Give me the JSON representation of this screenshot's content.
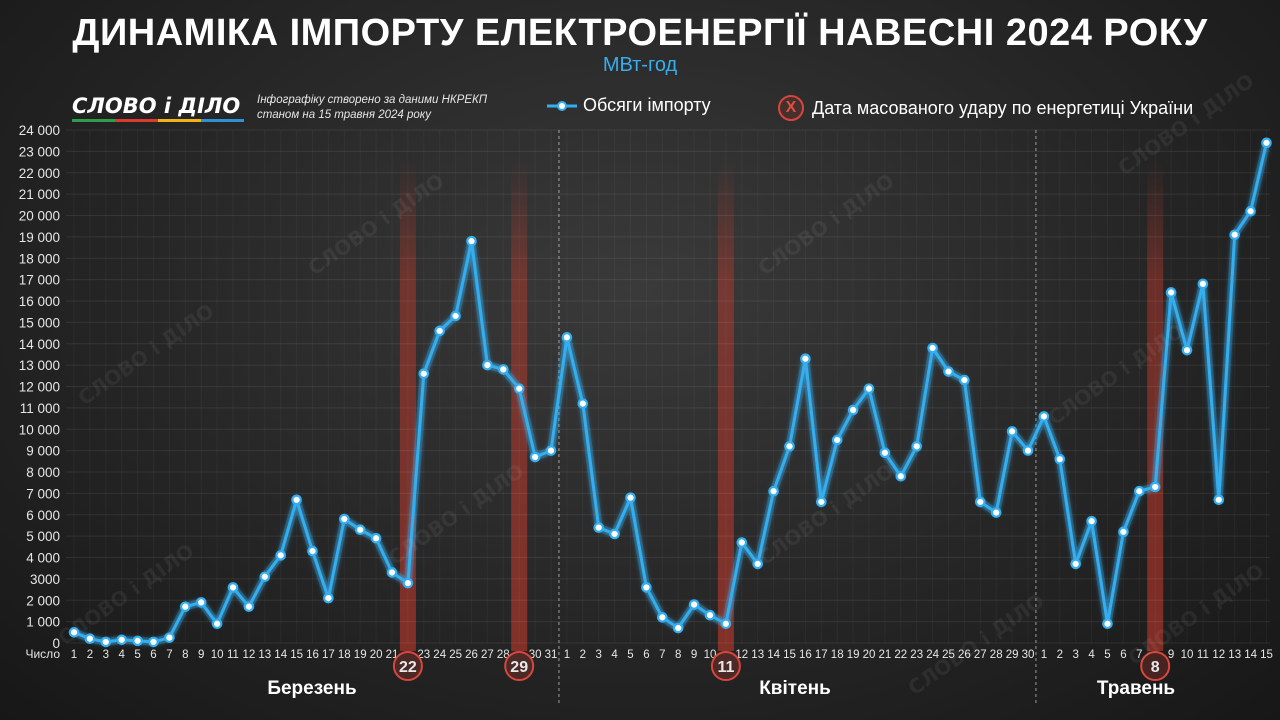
{
  "header": {
    "title": "ДИНАМІКА ІМПОРТУ ЕЛЕКТРОЕНЕРГІЇ НАВЕСНІ 2024 РОКУ",
    "unit": "МВт-год",
    "logo_text": "СЛОВО і ДІЛО",
    "source_line1": "Інфографіку створено за даними НКРЕКП",
    "source_line2": "станом на 15 травня 2024 року",
    "legend_series": "Обсяги імпорту",
    "legend_strike_symbol": "X",
    "legend_strike": "Дата масованого удару по енергетиці України",
    "watermark": "СЛОВО і ДІЛО"
  },
  "colors": {
    "line": "#35aef0",
    "point_fill": "#ffffff",
    "strike": "#c0392b",
    "axis_text": "#e6e6e6",
    "logo_stripes": [
      "#2e9e4a",
      "#d93b30",
      "#f2b318",
      "#2f8fd8"
    ]
  },
  "chart_data": {
    "type": "line",
    "ylim": [
      0,
      24000
    ],
    "yticks": [
      0,
      1000,
      2000,
      3000,
      4000,
      5000,
      6000,
      7000,
      8000,
      9000,
      10000,
      11000,
      12000,
      13000,
      14000,
      15000,
      16000,
      17000,
      18000,
      19000,
      20000,
      21000,
      22000,
      23000,
      24000
    ],
    "ytick_labels": [
      "0",
      "1 000",
      "2 000",
      "3000",
      "4 000",
      "5 000",
      "6 000",
      "7 000",
      "8 000",
      "9 000",
      "10 000",
      "11 000",
      "12 000",
      "13 000",
      "14 000",
      "15 000",
      "16 000",
      "17 000",
      "18 000",
      "19 000",
      "20 000",
      "21 000",
      "22 000",
      "23 000",
      "24 000"
    ],
    "xlabel": "Число",
    "grid": true,
    "months": [
      {
        "name": "Березень",
        "days": [
          1,
          2,
          3,
          4,
          5,
          6,
          7,
          8,
          9,
          10,
          11,
          12,
          13,
          14,
          15,
          16,
          17,
          18,
          19,
          20,
          21,
          22,
          23,
          24,
          25,
          26,
          27,
          28,
          29,
          30,
          31
        ],
        "values": [
          500,
          200,
          50,
          150,
          100,
          50,
          250,
          1700,
          1900,
          900,
          2600,
          1700,
          3100,
          4100,
          6700,
          4300,
          2100,
          5800,
          5300,
          4900,
          3300,
          2800,
          12600,
          14600,
          15300,
          18800,
          13000,
          12800,
          11900,
          8700,
          9000
        ]
      },
      {
        "name": "Квітень",
        "days": [
          1,
          2,
          3,
          4,
          5,
          6,
          7,
          8,
          9,
          10,
          11,
          12,
          13,
          14,
          15,
          16,
          17,
          18,
          19,
          20,
          21,
          22,
          23,
          24,
          25,
          26,
          27,
          28,
          29,
          30
        ],
        "values": [
          14300,
          11200,
          5400,
          5100,
          6800,
          2600,
          1200,
          700,
          1800,
          1300,
          900,
          4700,
          3700,
          7100,
          9200,
          13300,
          6600,
          9500,
          10900,
          11900,
          8900,
          7800,
          9200,
          13800,
          12700,
          12300,
          6600,
          6100,
          9900,
          9000
        ]
      },
      {
        "name": "Травень",
        "days": [
          1,
          2,
          3,
          4,
          5,
          6,
          7,
          8,
          9,
          10,
          11,
          12,
          13,
          14,
          15
        ],
        "values": [
          10600,
          8600,
          3700,
          5700,
          900,
          5200,
          7100,
          7300,
          16400,
          13700,
          16800,
          6700,
          19100,
          20200,
          23400
        ]
      }
    ],
    "strike_dates": [
      {
        "month": "Березень",
        "day": 22,
        "label": "22"
      },
      {
        "month": "Березень",
        "day": 29,
        "label": "29"
      },
      {
        "month": "Квітень",
        "day": 11,
        "label": "11"
      },
      {
        "month": "Травень",
        "day": 8,
        "label": "8"
      }
    ]
  }
}
